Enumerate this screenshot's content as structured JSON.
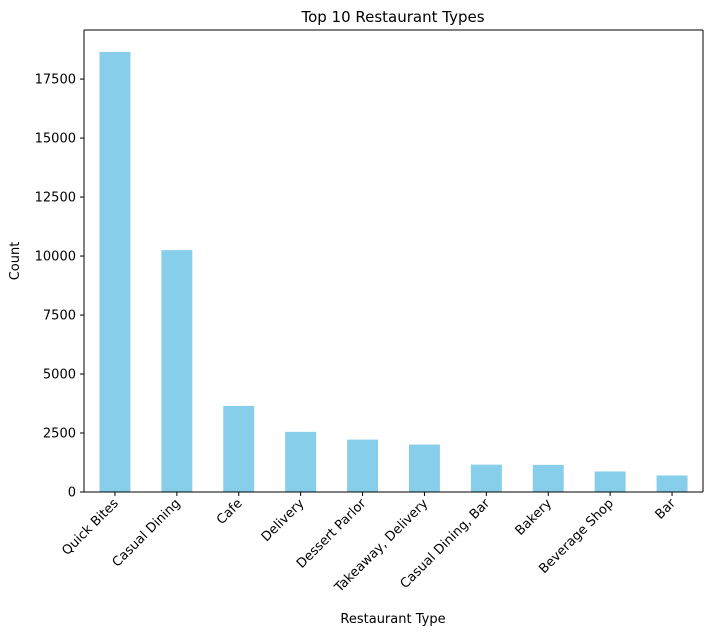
{
  "chart_data": {
    "type": "bar",
    "title": "Top 10 Restaurant Types",
    "xlabel": "Restaurant Type",
    "ylabel": "Count",
    "categories": [
      "Quick Bites",
      "Casual Dining",
      "Cafe",
      "Delivery",
      "Dessert Parlor",
      "Takeaway, Delivery",
      "Casual Dining, Bar",
      "Bakery",
      "Beverage Shop",
      "Bar"
    ],
    "values": [
      18650,
      10250,
      3650,
      2550,
      2220,
      2010,
      1160,
      1150,
      870,
      700
    ],
    "ylim": [
      0,
      19580
    ],
    "yticks": [
      "0",
      "2500",
      "5000",
      "7500",
      "10000",
      "12500",
      "15000",
      "17500"
    ],
    "grid": false,
    "legend": "none",
    "bar_color": "#87ceeb"
  }
}
